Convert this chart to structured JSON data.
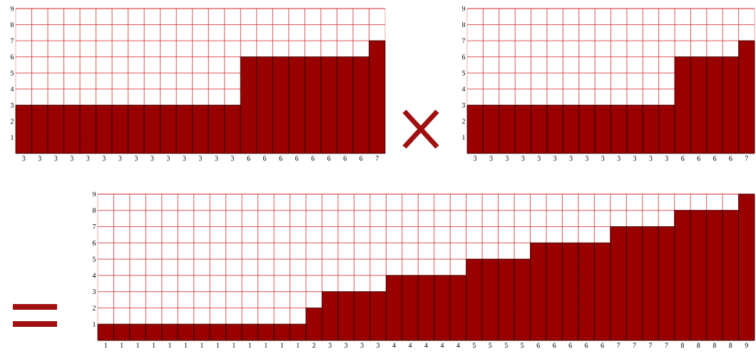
{
  "chart_data": [
    {
      "type": "bar",
      "categories": [
        "3",
        "3",
        "3",
        "3",
        "3",
        "3",
        "3",
        "3",
        "3",
        "3",
        "3",
        "3",
        "3",
        "3",
        "6",
        "6",
        "6",
        "6",
        "6",
        "6",
        "6",
        "6",
        "7"
      ],
      "values": [
        3,
        3,
        3,
        3,
        3,
        3,
        3,
        3,
        3,
        3,
        3,
        3,
        3,
        3,
        6,
        6,
        6,
        6,
        6,
        6,
        6,
        6,
        7
      ],
      "color": "#990000",
      "ylim": [
        0,
        9
      ],
      "yticks": [
        1,
        2,
        3,
        4,
        5,
        6,
        7,
        8,
        9
      ],
      "grid": true
    },
    {
      "type": "bar",
      "categories": [
        "3",
        "3",
        "3",
        "3",
        "3",
        "3",
        "3",
        "3",
        "3",
        "3",
        "3",
        "3",
        "3",
        "6",
        "6",
        "6",
        "6",
        "7"
      ],
      "values": [
        3,
        3,
        3,
        3,
        3,
        3,
        3,
        3,
        3,
        3,
        3,
        3,
        3,
        6,
        6,
        6,
        6,
        7
      ],
      "color": "#990000",
      "ylim": [
        0,
        9
      ],
      "yticks": [
        1,
        2,
        3,
        4,
        5,
        6,
        7,
        8,
        9
      ],
      "grid": true
    },
    {
      "type": "bar",
      "categories": [
        "1",
        "1",
        "1",
        "1",
        "1",
        "1",
        "1",
        "1",
        "1",
        "1",
        "1",
        "1",
        "1",
        "2",
        "3",
        "3",
        "3",
        "3",
        "4",
        "4",
        "4",
        "4",
        "4",
        "5",
        "5",
        "5",
        "5",
        "6",
        "6",
        "6",
        "6",
        "6",
        "7",
        "7",
        "7",
        "7",
        "8",
        "8",
        "8",
        "8",
        "9"
      ],
      "values": [
        1,
        1,
        1,
        1,
        1,
        1,
        1,
        1,
        1,
        1,
        1,
        1,
        1,
        2,
        3,
        3,
        3,
        3,
        4,
        4,
        4,
        4,
        4,
        5,
        5,
        5,
        5,
        6,
        6,
        6,
        6,
        6,
        7,
        7,
        7,
        7,
        8,
        8,
        8,
        8,
        9
      ],
      "color": "#990000",
      "ylim": [
        0,
        9
      ],
      "yticks": [
        1,
        2,
        3,
        4,
        5,
        6,
        7,
        8,
        9
      ],
      "grid": true
    }
  ]
}
